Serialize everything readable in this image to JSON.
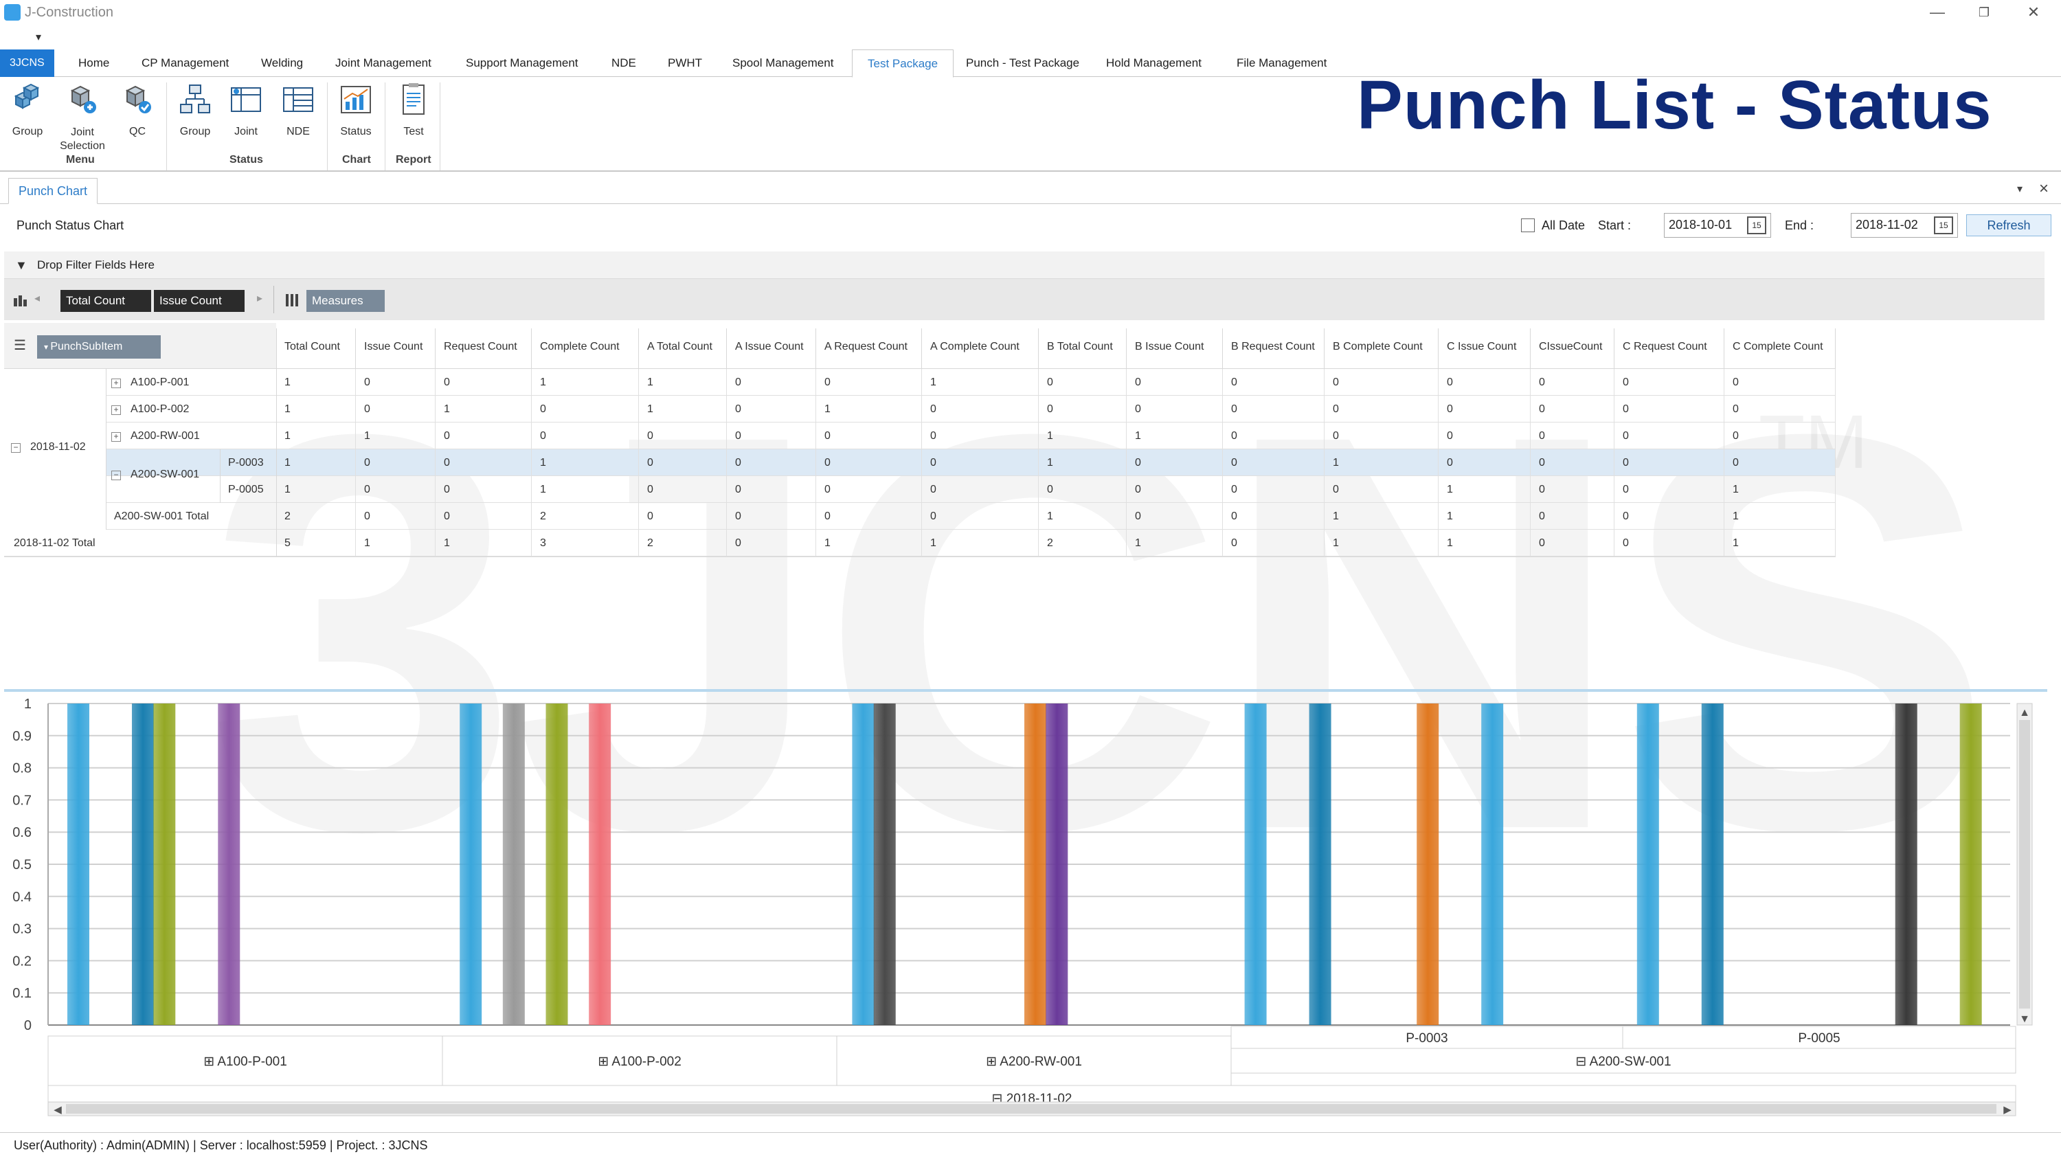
{
  "window": {
    "title": "J-Construction",
    "minimize": "—",
    "restore": "❐",
    "close": "✕",
    "qat": "▾"
  },
  "tabs": {
    "app": "3JCNS",
    "items": [
      "Home",
      "CP Management",
      "Welding",
      "Joint Management",
      "Support Management",
      "NDE",
      "PWHT",
      "Spool Management",
      "Test Package",
      "Punch - Test Package",
      "Hold Management",
      "File Management"
    ],
    "active": "Test Package"
  },
  "ribbon": {
    "groups": [
      {
        "label": "Menu",
        "buttons": [
          "Group",
          "Joint Selection",
          "QC"
        ]
      },
      {
        "label": "Status",
        "buttons": [
          "Group",
          "Joint",
          "NDE"
        ]
      },
      {
        "label": "Chart",
        "buttons": [
          "Status"
        ]
      },
      {
        "label": "Report",
        "buttons": [
          "Test"
        ]
      }
    ]
  },
  "overlay_title": "Punch List - Status",
  "doc_tab": "Punch Chart",
  "toolbar": {
    "title": "Punch Status Chart",
    "all_date": "All Date",
    "start_label": "Start :",
    "start_value": "2018-10-01",
    "end_label": "End :",
    "end_value": "2018-11-02",
    "calendar_glyph": "15",
    "refresh": "Refresh"
  },
  "pivot": {
    "filter_hint": "Drop Filter Fields Here",
    "data_fields": [
      "Total Count",
      "Issue Count"
    ],
    "measures": "Measures",
    "row_field": "PunchSubItem",
    "columns": [
      "Total Count",
      "Issue Count",
      "Request Count",
      "Complete Count",
      "A Total Count",
      "A Issue Count",
      "A Request Count",
      "A Complete Count",
      "B Total Count",
      "B Issue Count",
      "B Request Count",
      "B Complete Count",
      "C Issue Count",
      "CIssueCount",
      "C Request Count",
      "C Complete Count"
    ],
    "date": "2018-11-02",
    "rows": [
      {
        "l2": "A100-P-001",
        "l3": "",
        "values": [
          "1",
          "0",
          "0",
          "1",
          "1",
          "0",
          "0",
          "1",
          "0",
          "0",
          "0",
          "0",
          "0",
          "0",
          "0",
          "0"
        ]
      },
      {
        "l2": "A100-P-002",
        "l3": "",
        "values": [
          "1",
          "0",
          "1",
          "0",
          "1",
          "0",
          "1",
          "0",
          "0",
          "0",
          "0",
          "0",
          "0",
          "0",
          "0",
          "0"
        ]
      },
      {
        "l2": "A200-RW-001",
        "l3": "",
        "values": [
          "1",
          "1",
          "0",
          "0",
          "0",
          "0",
          "0",
          "0",
          "1",
          "1",
          "0",
          "0",
          "0",
          "0",
          "0",
          "0"
        ]
      },
      {
        "l2": "A200-SW-001",
        "l3": "P-0003",
        "values": [
          "1",
          "0",
          "0",
          "1",
          "0",
          "0",
          "0",
          "0",
          "1",
          "0",
          "0",
          "1",
          "0",
          "0",
          "0",
          "0"
        ]
      },
      {
        "l2": "",
        "l3": "P-0005",
        "values": [
          "1",
          "0",
          "0",
          "1",
          "0",
          "0",
          "0",
          "0",
          "0",
          "0",
          "0",
          "0",
          "1",
          "0",
          "0",
          "1"
        ]
      },
      {
        "l2": "A200-SW-001   Total",
        "l3": "",
        "values": [
          "2",
          "0",
          "0",
          "2",
          "0",
          "0",
          "0",
          "0",
          "1",
          "0",
          "0",
          "1",
          "1",
          "0",
          "0",
          "1"
        ]
      },
      {
        "l2": "2018-11-02   Total",
        "l3": "",
        "values": [
          "5",
          "1",
          "1",
          "3",
          "2",
          "0",
          "1",
          "1",
          "2",
          "1",
          "0",
          "1",
          "1",
          "0",
          "0",
          "1"
        ]
      }
    ]
  },
  "watermark": {
    "text": "3JCNS",
    "tm": "TM"
  },
  "chart_data": {
    "type": "bar",
    "title": "",
    "xlabel": "",
    "ylabel": "",
    "ylim": [
      0,
      1
    ],
    "yticks": [
      "0",
      "0.1",
      "0.2",
      "0.3",
      "0.4",
      "0.5",
      "0.6",
      "0.7",
      "0.8",
      "0.9",
      "1"
    ],
    "categories": [
      "A100-P-001",
      "A100-P-002",
      "A200-RW-001",
      "P-0003",
      "P-0005"
    ],
    "group_labels": [
      {
        "label": "A100-P-001",
        "level": 2
      },
      {
        "label": "A100-P-002",
        "level": 2
      },
      {
        "label": "A200-RW-001",
        "level": 2
      },
      {
        "label": "P-0003",
        "level": 3
      },
      {
        "label": "P-0005",
        "level": 3
      },
      {
        "label": "A200-SW-001",
        "level": 2
      },
      {
        "label": "2018-11-02",
        "level": 1
      }
    ],
    "series_colors": [
      "#3aa7dc",
      "#8a9aa8",
      "#1a7fb0",
      "#9aaa2a",
      "#a0a0a0",
      "#8e5aa8",
      "#e8a050",
      "#555555",
      "#f07878",
      "#e07820",
      "#6a3a9a",
      "#3a8fc8",
      "#1d6e9a",
      "#333333",
      "#5a7a2a",
      "#98a830"
    ],
    "bars": [
      {
        "category": "A100-P-001",
        "slot": 0,
        "value": 1,
        "color": "#3aa7dc"
      },
      {
        "category": "A100-P-001",
        "slot": 3,
        "value": 1,
        "color": "#1a7fb0"
      },
      {
        "category": "A100-P-001",
        "slot": 4,
        "value": 1,
        "color": "#94a825"
      },
      {
        "category": "A100-P-001",
        "slot": 7,
        "value": 1,
        "color": "#8e5aa8"
      },
      {
        "category": "A100-P-002",
        "slot": 0,
        "value": 1,
        "color": "#3aa7dc"
      },
      {
        "category": "A100-P-002",
        "slot": 2,
        "value": 1,
        "color": "#9a9a9a"
      },
      {
        "category": "A100-P-002",
        "slot": 4,
        "value": 1,
        "color": "#94a825"
      },
      {
        "category": "A100-P-002",
        "slot": 6,
        "value": 1,
        "color": "#f07078"
      },
      {
        "category": "A200-RW-001",
        "slot": 0,
        "value": 1,
        "color": "#3aa7dc"
      },
      {
        "category": "A200-RW-001",
        "slot": 1,
        "value": 1,
        "color": "#4a4a4a"
      },
      {
        "category": "A200-RW-001",
        "slot": 8,
        "value": 1,
        "color": "#e07820"
      },
      {
        "category": "A200-RW-001",
        "slot": 9,
        "value": 1,
        "color": "#6a3a9a"
      },
      {
        "category": "P-0003",
        "slot": 0,
        "value": 1,
        "color": "#3aa7dc"
      },
      {
        "category": "P-0003",
        "slot": 3,
        "value": 1,
        "color": "#1a7fb0"
      },
      {
        "category": "P-0003",
        "slot": 8,
        "value": 1,
        "color": "#e07820"
      },
      {
        "category": "P-0003",
        "slot": 11,
        "value": 1,
        "color": "#3aa7dc"
      },
      {
        "category": "P-0005",
        "slot": 0,
        "value": 1,
        "color": "#3aa7dc"
      },
      {
        "category": "P-0005",
        "slot": 3,
        "value": 1,
        "color": "#1a7fb0"
      },
      {
        "category": "P-0005",
        "slot": 12,
        "value": 1,
        "color": "#3a3a3a"
      },
      {
        "category": "P-0005",
        "slot": 15,
        "value": 1,
        "color": "#94a825"
      }
    ]
  },
  "statusbar": "User(Authority) : Admin(ADMIN)    |    Server : localhost:5959    |    Project. : 3JCNS"
}
